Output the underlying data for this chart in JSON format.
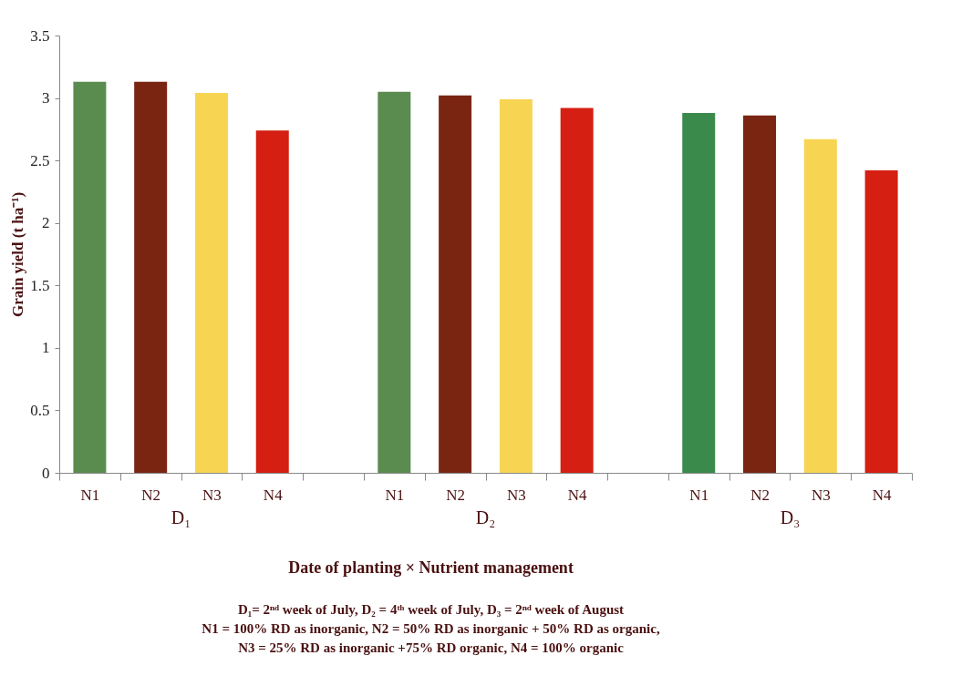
{
  "chart_data": {
    "type": "bar",
    "ylabel": "Grain yield (t ha⁻¹)",
    "xlabel": "Date of planting × Nutrient management",
    "categories": [
      "N1",
      "N2",
      "N3",
      "N4",
      "N1",
      "N2",
      "N3",
      "N4",
      "N1",
      "N2",
      "N3",
      "N4"
    ],
    "values": [
      3.13,
      3.13,
      3.04,
      2.74,
      3.05,
      3.02,
      2.99,
      2.92,
      2.88,
      2.86,
      2.67,
      2.42
    ],
    "colors": [
      "#5b8c4f",
      "#7a2512",
      "#f8d453",
      "#d41f12",
      "#5b8c4f",
      "#7a2512",
      "#f8d453",
      "#d41f12",
      "#3a8a4c",
      "#7a2512",
      "#f8d453",
      "#d41f12"
    ],
    "ylim": [
      0,
      3.5
    ],
    "yticks": [
      0,
      0.5,
      1,
      1.5,
      2,
      2.5,
      3,
      3.5
    ],
    "grid": false,
    "annotations": [
      "D₁",
      "D₂",
      "D₃",
      "D₁=  2ⁿᵈ week of July, D₂ = 4ᵗʰ week of July,  D₃ = 2ⁿᵈ week of August",
      "N1 = 100% RD as inorganic, N2 = 50% RD as inorganic + 50% RD as organic,",
      "N3 = 25% RD as inorganic +75% RD organic,  N4 = 100% organic"
    ]
  }
}
